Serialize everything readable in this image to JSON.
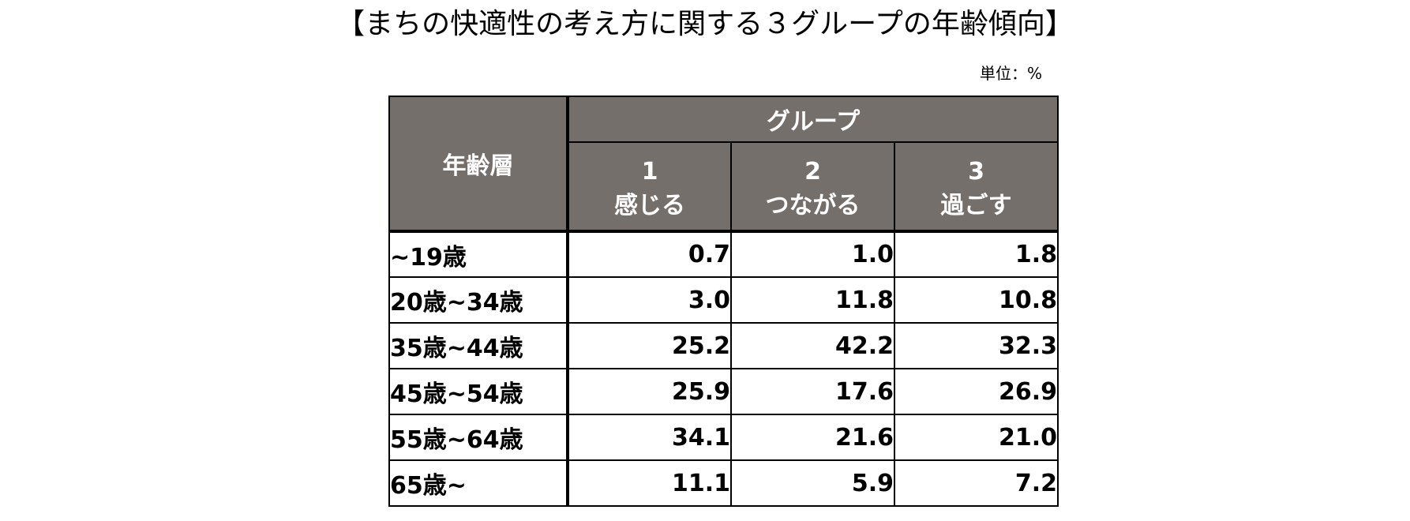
{
  "title": "【まちの快適性の考え方に関する３グループの年齢傾向】",
  "unit_label": "単位：%",
  "table": {
    "age_header": "年齢層",
    "group_header": "グループ",
    "groups": [
      {
        "number": "1",
        "name": "感じる"
      },
      {
        "number": "2",
        "name": "つながる"
      },
      {
        "number": "3",
        "name": "過ごす"
      }
    ],
    "rows": [
      {
        "age": "~19歳",
        "values": [
          "0.7",
          "1.0",
          "1.8"
        ]
      },
      {
        "age": "20歳~34歳",
        "values": [
          "3.0",
          "11.8",
          "10.8"
        ]
      },
      {
        "age": "35歳~44歳",
        "values": [
          "25.2",
          "42.2",
          "32.3"
        ]
      },
      {
        "age": "45歳~54歳",
        "values": [
          "25.9",
          "17.6",
          "26.9"
        ]
      },
      {
        "age": "55歳~64歳",
        "values": [
          "34.1",
          "21.6",
          "21.0"
        ]
      },
      {
        "age": "65歳~",
        "values": [
          "11.1",
          "5.9",
          "7.2"
        ]
      }
    ]
  }
}
